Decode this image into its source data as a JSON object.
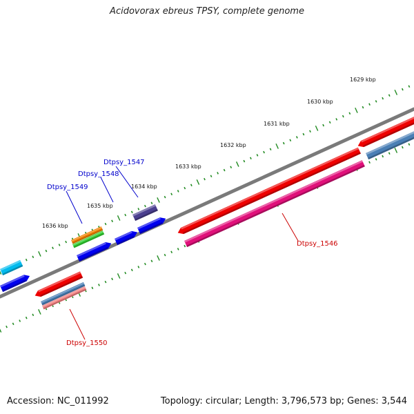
{
  "title": "Acidovorax ebreus TPSY, complete genome",
  "footer": {
    "accession": "Accession: NC_011992",
    "summary": "Topology: circular; Length: 3,796,573 bp; Genes: 3,544"
  },
  "colors": {
    "backbone": "#808080",
    "tick_dot": "#228B22",
    "label_forward": "#0000cc",
    "label_reverse": "#cc0000"
  },
  "scale_labels": [
    "1629 kbp",
    "1630 kbp",
    "1631 kbp",
    "1632 kbp",
    "1633 kbp",
    "1634 kbp",
    "1635 kbp",
    "1636 kbp"
  ],
  "gene_labels": [
    {
      "id": "lbl-1547",
      "text": "Dtpsy_1547",
      "strand": "forward"
    },
    {
      "id": "lbl-1548",
      "text": "Dtpsy_1548",
      "strand": "forward"
    },
    {
      "id": "lbl-1549",
      "text": "Dtpsy_1549",
      "strand": "forward"
    },
    {
      "id": "lbl-1546",
      "text": "Dtpsy_1546",
      "strand": "reverse"
    },
    {
      "id": "lbl-1550",
      "text": "Dtpsy_1550",
      "strand": "reverse"
    }
  ],
  "features": [
    {
      "name": "gene-1546-forward-red",
      "color": "#ee0000"
    },
    {
      "name": "gene-1546-reverse-pink",
      "color": "#e0107a"
    },
    {
      "name": "gene-top-right-red",
      "color": "#ee0000"
    },
    {
      "name": "gene-top-right-steelblue",
      "color": "#4a7fb5"
    },
    {
      "name": "gene-1547-slate",
      "color": "#4b3f8f"
    },
    {
      "name": "gene-1547-blue",
      "color": "#0000ee"
    },
    {
      "name": "gene-1548-blue",
      "color": "#0000ee"
    },
    {
      "name": "gene-1549-orange",
      "color": "#f08000"
    },
    {
      "name": "gene-1549-green",
      "color": "#33cc33"
    },
    {
      "name": "gene-1549-blue",
      "color": "#0000ee"
    },
    {
      "name": "gene-1550-red",
      "color": "#ee0000"
    },
    {
      "name": "gene-1550-steelblue",
      "color": "#4a7fb5"
    },
    {
      "name": "gene-1550-salmon",
      "color": "#f08080"
    },
    {
      "name": "gene-left-cyan",
      "color": "#00bbee"
    },
    {
      "name": "gene-left-blue",
      "color": "#0000ee"
    }
  ]
}
